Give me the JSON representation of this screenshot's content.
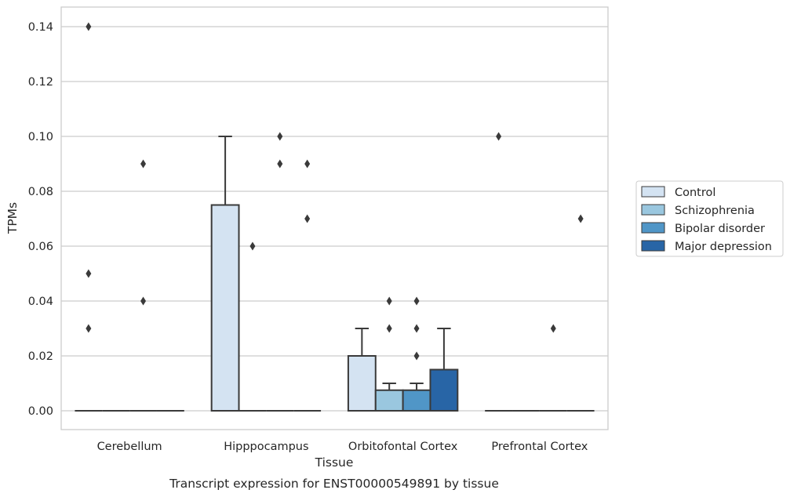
{
  "chart_data": {
    "type": "box",
    "title": "",
    "caption": "Transcript expression for ENST00000549891 by tissue",
    "xlabel": "Tissue",
    "ylabel": "TPMs",
    "ylim": [
      -0.007,
      0.147
    ],
    "yticks": [
      0.0,
      0.02,
      0.04,
      0.06,
      0.08,
      0.1,
      0.12,
      0.14
    ],
    "ytick_labels": [
      "0.00",
      "0.02",
      "0.04",
      "0.06",
      "0.08",
      "0.10",
      "0.12",
      "0.14"
    ],
    "grid": true,
    "legend_position": "right",
    "categories": [
      "Cerebellum",
      "Hipppocampus",
      "Orbitofontal Cortex",
      "Prefrontal Cortex"
    ],
    "series": [
      {
        "name": "Control",
        "color": "#d4e3f2",
        "boxes": [
          {
            "q1": 0,
            "median": 0,
            "q3": 0,
            "whisker_low": 0,
            "whisker_high": 0,
            "outliers": [
              0.14,
              0.05,
              0.03
            ]
          },
          {
            "q1": 0,
            "median": 0,
            "q3": 0.075,
            "whisker_low": 0,
            "whisker_high": 0.1,
            "outliers": []
          },
          {
            "q1": 0,
            "median": 0,
            "q3": 0.02,
            "whisker_low": 0,
            "whisker_high": 0.03,
            "outliers": []
          },
          {
            "q1": 0,
            "median": 0,
            "q3": 0,
            "whisker_low": 0,
            "whisker_high": 0,
            "outliers": [
              0.1
            ]
          }
        ]
      },
      {
        "name": "Schizophrenia",
        "color": "#9ac7df",
        "boxes": [
          {
            "q1": 0,
            "median": 0,
            "q3": 0,
            "whisker_low": 0,
            "whisker_high": 0,
            "outliers": []
          },
          {
            "q1": 0,
            "median": 0,
            "q3": 0,
            "whisker_low": 0,
            "whisker_high": 0,
            "outliers": [
              0.06
            ]
          },
          {
            "q1": 0,
            "median": 0,
            "q3": 0.0075,
            "whisker_low": 0,
            "whisker_high": 0.01,
            "outliers": [
              0.04,
              0.03
            ]
          },
          {
            "q1": 0,
            "median": 0,
            "q3": 0,
            "whisker_low": 0,
            "whisker_high": 0,
            "outliers": []
          }
        ]
      },
      {
        "name": "Bipolar disorder",
        "color": "#5096c7",
        "boxes": [
          {
            "q1": 0,
            "median": 0,
            "q3": 0,
            "whisker_low": 0,
            "whisker_high": 0,
            "outliers": [
              0.09,
              0.04
            ]
          },
          {
            "q1": 0,
            "median": 0,
            "q3": 0,
            "whisker_low": 0,
            "whisker_high": 0,
            "outliers": [
              0.1,
              0.09
            ]
          },
          {
            "q1": 0,
            "median": 0,
            "q3": 0.0075,
            "whisker_low": 0,
            "whisker_high": 0.01,
            "outliers": [
              0.04,
              0.03,
              0.02
            ]
          },
          {
            "q1": 0,
            "median": 0,
            "q3": 0,
            "whisker_low": 0,
            "whisker_high": 0,
            "outliers": [
              0.03
            ]
          }
        ]
      },
      {
        "name": "Major depression",
        "color": "#2865a6",
        "boxes": [
          {
            "q1": 0,
            "median": 0,
            "q3": 0,
            "whisker_low": 0,
            "whisker_high": 0,
            "outliers": []
          },
          {
            "q1": 0,
            "median": 0,
            "q3": 0,
            "whisker_low": 0,
            "whisker_high": 0,
            "outliers": [
              0.09,
              0.07
            ]
          },
          {
            "q1": 0,
            "median": 0,
            "q3": 0.015,
            "whisker_low": 0,
            "whisker_high": 0.03,
            "outliers": []
          },
          {
            "q1": 0,
            "median": 0,
            "q3": 0,
            "whisker_low": 0,
            "whisker_high": 0,
            "outliers": [
              0.07
            ]
          }
        ]
      }
    ]
  }
}
